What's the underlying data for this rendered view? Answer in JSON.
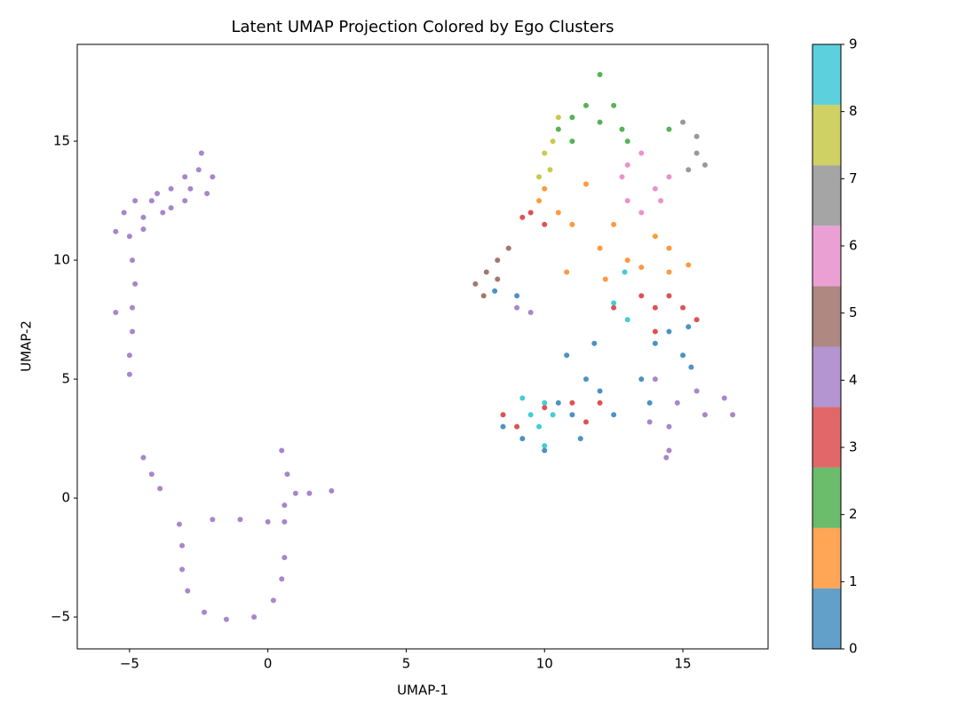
{
  "chart_data": {
    "type": "scatter",
    "title": "Latent UMAP Projection Colored by Ego Clusters",
    "x_label": "UMAP-1",
    "y_label": "UMAP-2",
    "xlim": [
      -6.89,
      18.08
    ],
    "ylim": [
      -6.34,
      19.07
    ],
    "xticks": [
      {
        "value": -5,
        "label": "−5"
      },
      0,
      5,
      10,
      15
    ],
    "yticks": [
      {
        "value": -5,
        "label": "−5"
      },
      0,
      5,
      10,
      15
    ],
    "colorbar": {
      "lim": [
        0,
        9
      ],
      "ticks": [
        0,
        1,
        2,
        3,
        4,
        5,
        6,
        7,
        8,
        9
      ],
      "colors": [
        "#1f77b4",
        "#ff7f0e",
        "#2ca02c",
        "#d62728",
        "#9467bd",
        "#8c564b",
        "#e377c2",
        "#7f7f7f",
        "#bcbd22",
        "#17becf"
      ]
    },
    "series": [
      {
        "color": "#1f77b4",
        "x": [
          8.5,
          9.2,
          10.5,
          11,
          11.5,
          10.8,
          11.3,
          12,
          12.5,
          13.5,
          14,
          14.5,
          15,
          15.3,
          13.8,
          9,
          8.2,
          10,
          11.8,
          15.2
        ],
        "values": [
          3,
          2.5,
          4,
          3.5,
          5,
          6,
          2.5,
          4.5,
          3.5,
          5,
          6.5,
          7,
          6,
          5.5,
          4,
          8.5,
          8.7,
          2,
          6.5,
          7.2
        ]
      },
      {
        "color": "#ff7f0e",
        "x": [
          10,
          10.5,
          11,
          12,
          12.5,
          13,
          14,
          14.5,
          15.2,
          11.5,
          9.8,
          13.5,
          12.2,
          10.8,
          14.5
        ],
        "values": [
          13,
          12,
          11.5,
          10.5,
          11.5,
          10,
          11,
          9.5,
          9.8,
          13.2,
          12.5,
          9.7,
          9.2,
          9.5,
          10.5
        ]
      },
      {
        "color": "#2ca02c",
        "x": [
          11,
          11.5,
          12,
          12.5,
          12,
          13,
          11,
          14.5,
          10.5,
          12.8
        ],
        "values": [
          16,
          16.5,
          17.8,
          16.5,
          15.8,
          15,
          15,
          15.5,
          15.5,
          15.5
        ]
      },
      {
        "color": "#d62728",
        "x": [
          9.5,
          10,
          9.2,
          13.5,
          14,
          14.5,
          15,
          15.5,
          14,
          11,
          11.5,
          12,
          9,
          10,
          12.5,
          8.5
        ],
        "values": [
          12,
          11.5,
          11.8,
          8.5,
          8,
          8.5,
          8,
          7.5,
          7,
          4,
          3.2,
          4,
          3,
          3.8,
          8,
          3.5
        ]
      },
      {
        "color": "#9467bd",
        "x": [
          -5.5,
          -5.2,
          -4.8,
          -4.5,
          -4,
          -3.5,
          -3,
          -2.5,
          -2,
          -2.2,
          -3,
          -3.8,
          -4.5,
          -5,
          -2.4,
          -3.5,
          -4.2,
          -2.8,
          -4.9,
          -4.8,
          -4.9,
          -4.9,
          -5,
          -5,
          -5.5,
          -4.5,
          -4.2,
          -3.9,
          0.5,
          0.7,
          1,
          1.5,
          2.3,
          0.6,
          -2,
          -1,
          0,
          0.6,
          -3.2,
          -3.1,
          -3.1,
          -2.9,
          -2.3,
          -1.5,
          -0.5,
          0.2,
          0.5,
          0.6,
          9.5,
          9,
          14,
          15.5,
          16.5,
          16.8,
          14.5,
          14.5,
          14.4,
          15.8,
          14.8,
          13.8
        ],
        "values": [
          11.2,
          12,
          12.5,
          11.8,
          12.8,
          13,
          13.5,
          13.8,
          13.5,
          12.8,
          12.5,
          12,
          11.3,
          11,
          14.5,
          12.2,
          12.5,
          13,
          10,
          9,
          8,
          7,
          6,
          5.2,
          7.8,
          1.7,
          1,
          0.4,
          2,
          1,
          0.2,
          0.2,
          0.3,
          -0.3,
          -0.9,
          -0.9,
          -1,
          -1,
          -1.1,
          -2,
          -3,
          -3.9,
          -4.8,
          -5.1,
          -5,
          -4.3,
          -3.4,
          -2.5,
          7.8,
          8,
          5,
          4.5,
          4.2,
          3.5,
          3,
          2,
          1.7,
          3.5,
          4,
          3.2
        ]
      },
      {
        "color": "#8c564b",
        "x": [
          7.5,
          7.9,
          8.3,
          8.7,
          7.8,
          8.3
        ],
        "values": [
          9,
          9.5,
          10,
          10.5,
          8.5,
          9.2
        ]
      },
      {
        "color": "#e377c2",
        "x": [
          13,
          13.5,
          14,
          13,
          14.5,
          13.5,
          14.2,
          12.8
        ],
        "values": [
          14,
          14.5,
          13,
          12.5,
          13.5,
          12,
          12.5,
          13.5
        ]
      },
      {
        "color": "#7f7f7f",
        "x": [
          15,
          15.5,
          15.5,
          15.8,
          15.2
        ],
        "values": [
          15.8,
          15.2,
          14.5,
          14,
          13.8
        ]
      },
      {
        "color": "#bcbd22",
        "x": [
          10.5,
          10.3,
          10,
          10.2,
          9.8
        ],
        "values": [
          16,
          15,
          14.5,
          13.8,
          13.5
        ]
      },
      {
        "color": "#17becf",
        "x": [
          9.5,
          10,
          9.8,
          10.3,
          9.2,
          10,
          13,
          12.5,
          12.9
        ],
        "values": [
          3.5,
          4,
          3,
          3.5,
          4.2,
          2.2,
          7.5,
          8.2,
          9.5
        ]
      }
    ]
  }
}
